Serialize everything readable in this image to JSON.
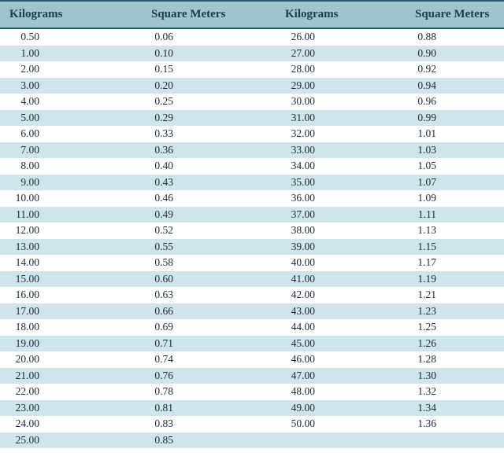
{
  "type": "table",
  "columns": [
    "Kilograms",
    "Square Meters",
    "Kilograms",
    "Square Meters"
  ],
  "rows": [
    [
      "0.50",
      "0.06",
      "26.00",
      "0.88"
    ],
    [
      "1.00",
      "0.10",
      "27.00",
      "0.90"
    ],
    [
      "2.00",
      "0.15",
      "28.00",
      "0.92"
    ],
    [
      "3.00",
      "0.20",
      "29.00",
      "0.94"
    ],
    [
      "4.00",
      "0.25",
      "30.00",
      "0.96"
    ],
    [
      "5.00",
      "0.29",
      "31.00",
      "0.99"
    ],
    [
      "6.00",
      "0.33",
      "32.00",
      "1.01"
    ],
    [
      "7.00",
      "0.36",
      "33.00",
      "1.03"
    ],
    [
      "8.00",
      "0.40",
      "34.00",
      "1.05"
    ],
    [
      "9.00",
      "0.43",
      "35.00",
      "1.07"
    ],
    [
      "10.00",
      "0.46",
      "36.00",
      "1.09"
    ],
    [
      "11.00",
      "0.49",
      "37.00",
      "1.11"
    ],
    [
      "12.00",
      "0.52",
      "38.00",
      "1.13"
    ],
    [
      "13.00",
      "0.55",
      "39.00",
      "1.15"
    ],
    [
      "14.00",
      "0.58",
      "40.00",
      "1.17"
    ],
    [
      "15.00",
      "0.60",
      "41.00",
      "1.19"
    ],
    [
      "16.00",
      "0.63",
      "42.00",
      "1.21"
    ],
    [
      "17.00",
      "0.66",
      "43.00",
      "1.23"
    ],
    [
      "18.00",
      "0.69",
      "44.00",
      "1.25"
    ],
    [
      "19.00",
      "0.71",
      "45.00",
      "1.26"
    ],
    [
      "20.00",
      "0.74",
      "46.00",
      "1.28"
    ],
    [
      "21.00",
      "0.76",
      "47.00",
      "1.30"
    ],
    [
      "22.00",
      "0.78",
      "48.00",
      "1.32"
    ],
    [
      "23.00",
      "0.81",
      "49.00",
      "1.34"
    ],
    [
      "24.00",
      "0.83",
      "50.00",
      "1.36"
    ],
    [
      "25.00",
      "0.85",
      "",
      ""
    ]
  ],
  "header_bg": "#9fc4cd",
  "header_text_color": "#1a3d4a",
  "header_border_color": "#2a5a6a",
  "row_even_bg": "#ffffff",
  "row_odd_bg": "#d0e4eb",
  "cell_text_color": "#1a2a3a",
  "header_fontsize": 15,
  "cell_fontsize": 13.5,
  "row_height": 20.5
}
